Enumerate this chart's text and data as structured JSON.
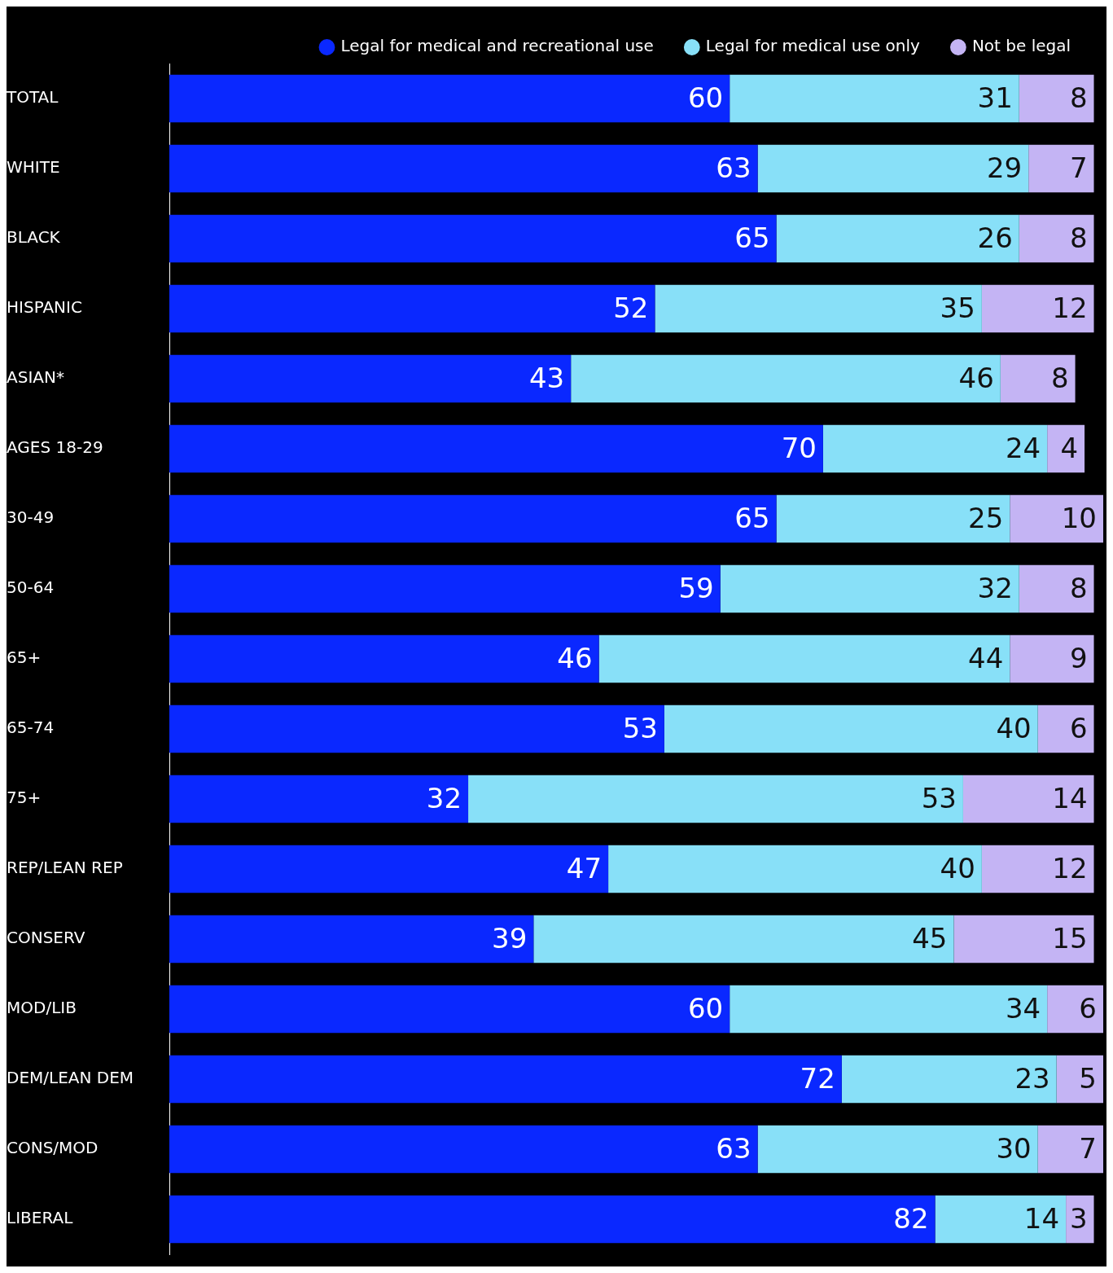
{
  "chart_data": {
    "type": "bar",
    "orientation": "horizontal",
    "stacked": true,
    "data_labels": true,
    "legend": "top right",
    "tick_labels": "y",
    "grid": false,
    "xlim": [
      0,
      100
    ],
    "categories": [
      "TOTAL",
      "WHITE",
      "BLACK",
      "HISPANIC",
      "ASIAN*",
      "AGES 18-29",
      "30-49",
      "50-64",
      "65+",
      "65-74",
      "75+",
      "REP/LEAN REP",
      "CONSERV",
      "MOD/LIB",
      "DEM/LEAN DEM",
      "CONS/MOD",
      "LIBERAL"
    ],
    "series": [
      {
        "name": "Legal for medical and recreational use",
        "color": "#0a28ff",
        "values": [
          60,
          63,
          65,
          52,
          43,
          70,
          65,
          59,
          46,
          53,
          32,
          47,
          39,
          60,
          72,
          63,
          82
        ]
      },
      {
        "name": "Legal for medical use only",
        "color": "#88e0f8",
        "values": [
          31,
          29,
          26,
          35,
          46,
          24,
          25,
          32,
          44,
          40,
          53,
          40,
          45,
          34,
          23,
          30,
          14
        ]
      },
      {
        "name": "Not be legal",
        "color": "#c4b4f4",
        "values": [
          8,
          7,
          8,
          12,
          8,
          4,
          10,
          8,
          9,
          6,
          14,
          12,
          15,
          6,
          5,
          7,
          3
        ]
      }
    ]
  }
}
